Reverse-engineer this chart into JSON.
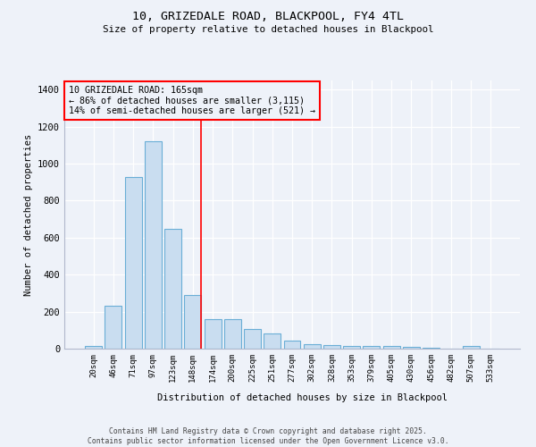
{
  "title1": "10, GRIZEDALE ROAD, BLACKPOOL, FY4 4TL",
  "title2": "Size of property relative to detached houses in Blackpool",
  "xlabel": "Distribution of detached houses by size in Blackpool",
  "ylabel": "Number of detached properties",
  "categories": [
    "20sqm",
    "46sqm",
    "71sqm",
    "97sqm",
    "123sqm",
    "148sqm",
    "174sqm",
    "200sqm",
    "225sqm",
    "251sqm",
    "277sqm",
    "302sqm",
    "328sqm",
    "353sqm",
    "379sqm",
    "405sqm",
    "430sqm",
    "456sqm",
    "482sqm",
    "507sqm",
    "533sqm"
  ],
  "values": [
    15,
    230,
    930,
    1120,
    650,
    290,
    160,
    160,
    105,
    80,
    45,
    25,
    20,
    15,
    15,
    15,
    10,
    5,
    0,
    15,
    0
  ],
  "bar_color": "#c9ddf0",
  "bar_edge_color": "#6aaed6",
  "marker_label": "10 GRIZEDALE ROAD: 165sqm",
  "annotation_line1": "← 86% of detached houses are smaller (3,115)",
  "annotation_line2": "14% of semi-detached houses are larger (521) →",
  "ylim": [
    0,
    1450
  ],
  "yticks": [
    0,
    200,
    400,
    600,
    800,
    1000,
    1200,
    1400
  ],
  "bg_color": "#eef2f9",
  "grid_color": "#ffffff",
  "footer1": "Contains HM Land Registry data © Crown copyright and database right 2025.",
  "footer2": "Contains public sector information licensed under the Open Government Licence v3.0."
}
